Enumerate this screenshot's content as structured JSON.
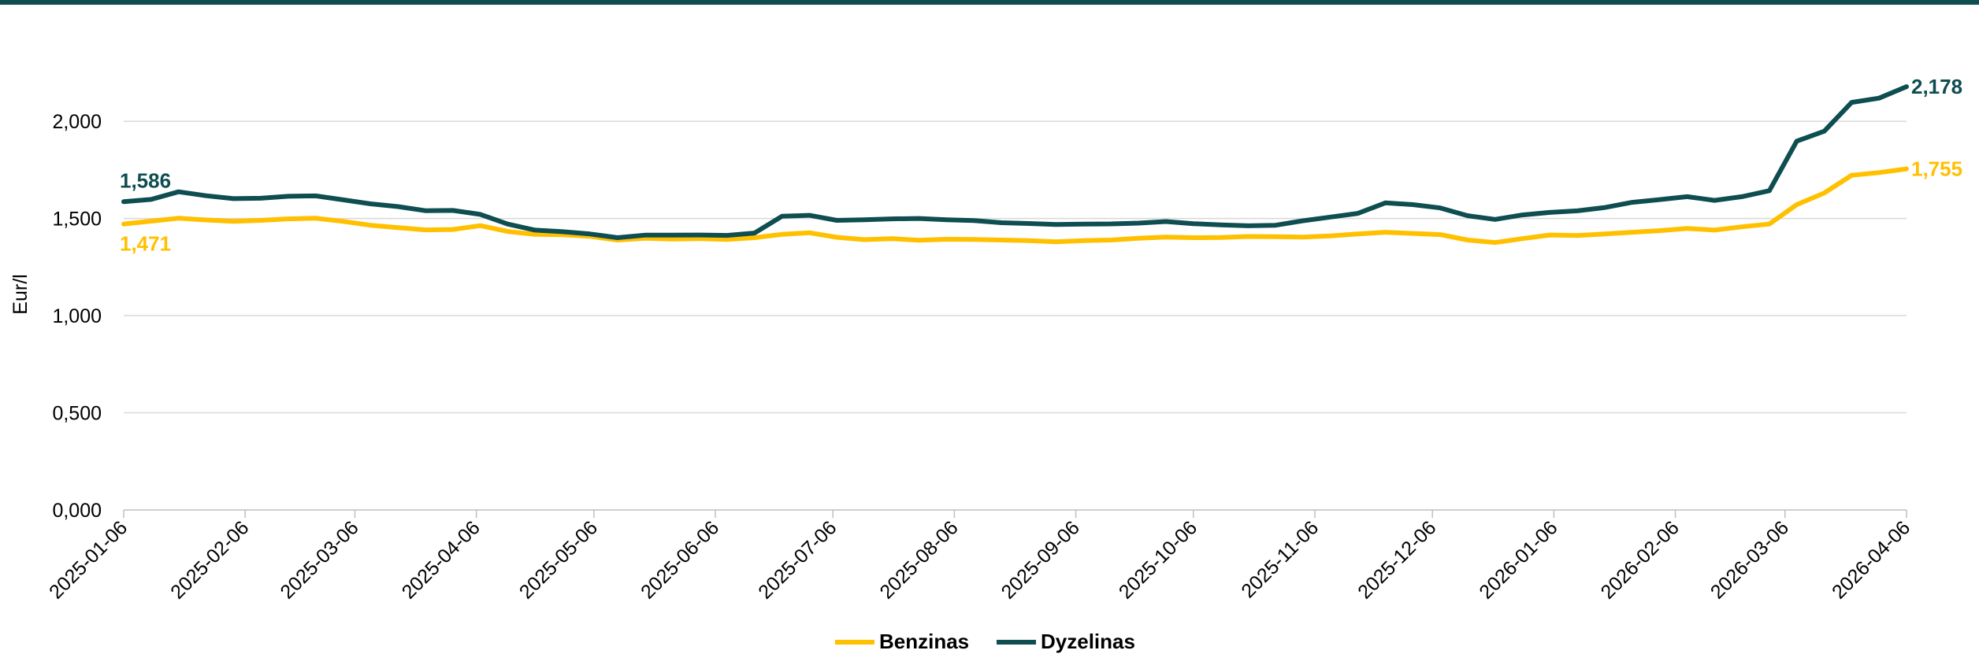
{
  "chart_data": {
    "type": "line",
    "ylabel": "Eur/l",
    "ylim": [
      0,
      2.3
    ],
    "y_ticks": [
      0,
      0.5,
      1.0,
      1.5,
      2.0
    ],
    "y_tick_labels": [
      "0,000",
      "0,500",
      "1,000",
      "1,500",
      "2,000"
    ],
    "x_range": [
      "2025-01-06",
      "2026-04-06"
    ],
    "x_tick_labels": [
      "2025-01-06",
      "2025-02-06",
      "2025-03-06",
      "2025-04-06",
      "2025-05-06",
      "2025-06-06",
      "2025-07-06",
      "2025-08-06",
      "2025-09-06",
      "2025-10-06",
      "2025-11-06",
      "2025-12-06",
      "2026-01-06",
      "2026-02-06",
      "2026-03-06",
      "2026-04-06"
    ],
    "grid": "horizontal",
    "legend_position": "bottom-center",
    "series": [
      {
        "name": "Benzinas",
        "color": "#FFC000",
        "start_label": "1,471",
        "end_label": "1,755",
        "points": [
          [
            "2025-01-06",
            1.471
          ],
          [
            "2025-01-13",
            1.486
          ],
          [
            "2025-01-20",
            1.501
          ],
          [
            "2025-01-27",
            1.492
          ],
          [
            "2025-02-03",
            1.485
          ],
          [
            "2025-02-10",
            1.49
          ],
          [
            "2025-02-17",
            1.498
          ],
          [
            "2025-02-24",
            1.501
          ],
          [
            "2025-03-03",
            1.485
          ],
          [
            "2025-03-10",
            1.465
          ],
          [
            "2025-03-17",
            1.453
          ],
          [
            "2025-03-24",
            1.441
          ],
          [
            "2025-03-31",
            1.443
          ],
          [
            "2025-04-07",
            1.463
          ],
          [
            "2025-04-14",
            1.433
          ],
          [
            "2025-04-21",
            1.418
          ],
          [
            "2025-04-28",
            1.416
          ],
          [
            "2025-05-05",
            1.408
          ],
          [
            "2025-05-12",
            1.389
          ],
          [
            "2025-05-19",
            1.398
          ],
          [
            "2025-05-26",
            1.394
          ],
          [
            "2025-06-02",
            1.396
          ],
          [
            "2025-06-09",
            1.392
          ],
          [
            "2025-06-16",
            1.401
          ],
          [
            "2025-06-23",
            1.418
          ],
          [
            "2025-06-30",
            1.426
          ],
          [
            "2025-07-07",
            1.403
          ],
          [
            "2025-07-14",
            1.391
          ],
          [
            "2025-07-21",
            1.396
          ],
          [
            "2025-07-28",
            1.388
          ],
          [
            "2025-08-04",
            1.393
          ],
          [
            "2025-08-11",
            1.392
          ],
          [
            "2025-08-18",
            1.389
          ],
          [
            "2025-08-25",
            1.386
          ],
          [
            "2025-09-01",
            1.38
          ],
          [
            "2025-09-08",
            1.386
          ],
          [
            "2025-09-15",
            1.389
          ],
          [
            "2025-09-22",
            1.398
          ],
          [
            "2025-09-29",
            1.404
          ],
          [
            "2025-10-06",
            1.401
          ],
          [
            "2025-10-13",
            1.402
          ],
          [
            "2025-10-20",
            1.407
          ],
          [
            "2025-10-27",
            1.406
          ],
          [
            "2025-11-03",
            1.404
          ],
          [
            "2025-11-10",
            1.41
          ],
          [
            "2025-11-17",
            1.42
          ],
          [
            "2025-11-24",
            1.429
          ],
          [
            "2025-12-01",
            1.423
          ],
          [
            "2025-12-08",
            1.417
          ],
          [
            "2025-12-15",
            1.389
          ],
          [
            "2025-12-22",
            1.376
          ],
          [
            "2025-12-29",
            1.396
          ],
          [
            "2026-01-05",
            1.415
          ],
          [
            "2026-01-12",
            1.412
          ],
          [
            "2026-01-19",
            1.42
          ],
          [
            "2026-01-26",
            1.429
          ],
          [
            "2026-02-02",
            1.437
          ],
          [
            "2026-02-09",
            1.449
          ],
          [
            "2026-02-16",
            1.44
          ],
          [
            "2026-02-23",
            1.457
          ],
          [
            "2026-03-02",
            1.471
          ],
          [
            "2026-03-09",
            1.571
          ],
          [
            "2026-03-16",
            1.631
          ],
          [
            "2026-03-23",
            1.722
          ],
          [
            "2026-03-30",
            1.736
          ],
          [
            "2026-04-06",
            1.755
          ]
        ]
      },
      {
        "name": "Dyzelinas",
        "color": "#0E4D50",
        "start_label": "1,586",
        "end_label": "2,178",
        "points": [
          [
            "2025-01-06",
            1.586
          ],
          [
            "2025-01-13",
            1.598
          ],
          [
            "2025-01-20",
            1.637
          ],
          [
            "2025-01-27",
            1.617
          ],
          [
            "2025-02-03",
            1.602
          ],
          [
            "2025-02-10",
            1.604
          ],
          [
            "2025-02-17",
            1.614
          ],
          [
            "2025-02-24",
            1.616
          ],
          [
            "2025-03-03",
            1.596
          ],
          [
            "2025-03-10",
            1.575
          ],
          [
            "2025-03-17",
            1.561
          ],
          [
            "2025-03-24",
            1.54
          ],
          [
            "2025-03-31",
            1.541
          ],
          [
            "2025-04-07",
            1.521
          ],
          [
            "2025-04-14",
            1.471
          ],
          [
            "2025-04-21",
            1.44
          ],
          [
            "2025-04-28",
            1.432
          ],
          [
            "2025-05-05",
            1.42
          ],
          [
            "2025-05-12",
            1.401
          ],
          [
            "2025-05-19",
            1.414
          ],
          [
            "2025-05-26",
            1.414
          ],
          [
            "2025-06-02",
            1.415
          ],
          [
            "2025-06-09",
            1.413
          ],
          [
            "2025-06-16",
            1.425
          ],
          [
            "2025-06-23",
            1.511
          ],
          [
            "2025-06-30",
            1.516
          ],
          [
            "2025-07-07",
            1.49
          ],
          [
            "2025-07-14",
            1.493
          ],
          [
            "2025-07-21",
            1.498
          ],
          [
            "2025-07-28",
            1.5
          ],
          [
            "2025-08-04",
            1.493
          ],
          [
            "2025-08-11",
            1.489
          ],
          [
            "2025-08-18",
            1.478
          ],
          [
            "2025-08-25",
            1.474
          ],
          [
            "2025-09-01",
            1.469
          ],
          [
            "2025-09-08",
            1.471
          ],
          [
            "2025-09-15",
            1.472
          ],
          [
            "2025-09-22",
            1.476
          ],
          [
            "2025-09-29",
            1.484
          ],
          [
            "2025-10-06",
            1.473
          ],
          [
            "2025-10-13",
            1.467
          ],
          [
            "2025-10-20",
            1.462
          ],
          [
            "2025-10-27",
            1.465
          ],
          [
            "2025-11-03",
            1.488
          ],
          [
            "2025-11-10",
            1.507
          ],
          [
            "2025-11-17",
            1.526
          ],
          [
            "2025-11-24",
            1.58
          ],
          [
            "2025-12-01",
            1.571
          ],
          [
            "2025-12-08",
            1.554
          ],
          [
            "2025-12-15",
            1.514
          ],
          [
            "2025-12-22",
            1.495
          ],
          [
            "2025-12-29",
            1.518
          ],
          [
            "2026-01-05",
            1.531
          ],
          [
            "2026-01-12",
            1.539
          ],
          [
            "2026-01-19",
            1.556
          ],
          [
            "2026-01-26",
            1.583
          ],
          [
            "2026-02-02",
            1.597
          ],
          [
            "2026-02-09",
            1.612
          ],
          [
            "2026-02-16",
            1.593
          ],
          [
            "2026-02-23",
            1.612
          ],
          [
            "2026-03-02",
            1.643
          ],
          [
            "2026-03-09",
            1.898
          ],
          [
            "2026-03-16",
            1.949
          ],
          [
            "2026-03-23",
            2.097
          ],
          [
            "2026-03-30",
            2.119
          ],
          [
            "2026-04-06",
            2.178
          ]
        ]
      }
    ]
  }
}
